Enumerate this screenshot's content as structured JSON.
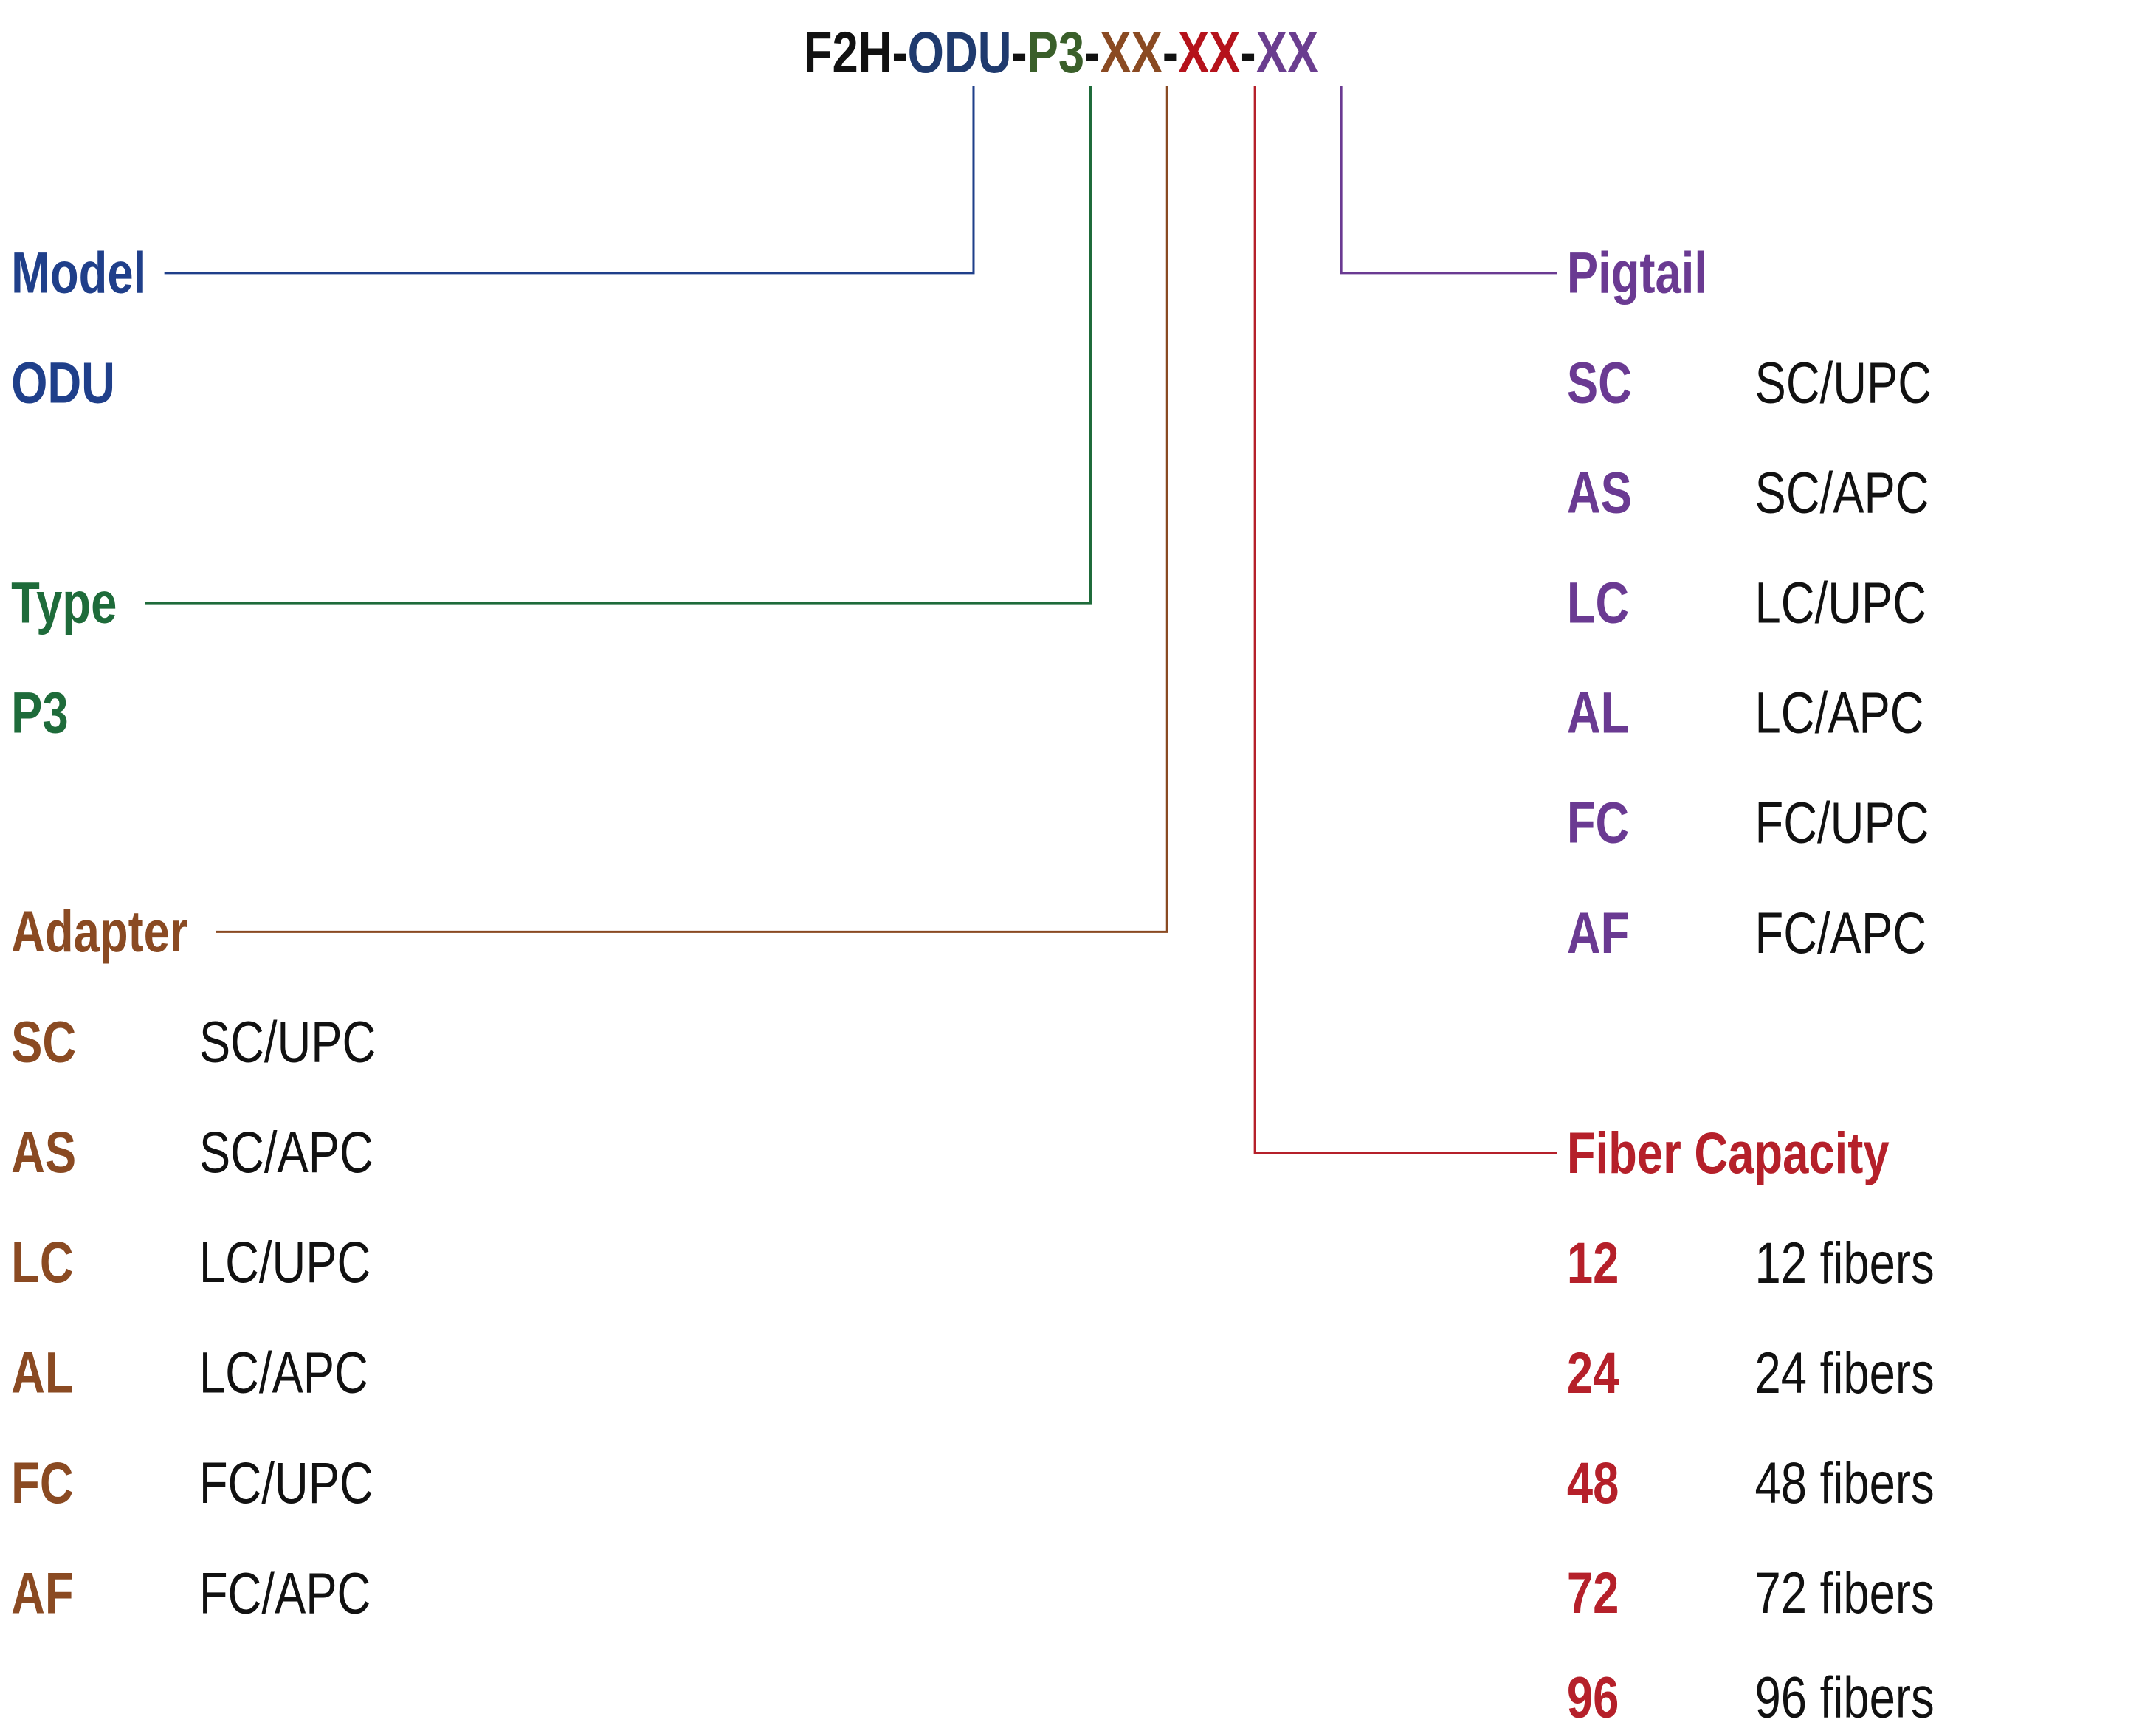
{
  "code": {
    "segments": [
      "F2H-",
      "ODU",
      "-",
      "P3",
      "-",
      "XX",
      "-",
      "XX",
      "-",
      "XX"
    ]
  },
  "sections": [
    {
      "title": "Model",
      "options": [
        {
          "code": "ODU"
        }
      ]
    },
    {
      "title": "Type",
      "options": [
        {
          "code": "P3"
        }
      ]
    },
    {
      "title": "Adapter",
      "options": [
        {
          "code": "SC",
          "description": "SC/UPC"
        },
        {
          "code": "AS",
          "description": "SC/APC"
        },
        {
          "code": "LC",
          "description": "LC/UPC"
        },
        {
          "code": "AL",
          "description": "LC/APC"
        },
        {
          "code": "FC",
          "description": "FC/UPC"
        },
        {
          "code": "AF",
          "description": "FC/APC"
        }
      ]
    },
    {
      "title": "Pigtail",
      "options": [
        {
          "code": "SC",
          "description": "SC/UPC"
        },
        {
          "code": "AS",
          "description": "SC/APC"
        },
        {
          "code": "LC",
          "description": "LC/UPC"
        },
        {
          "code": "AL",
          "description": "LC/APC"
        },
        {
          "code": "FC",
          "description": "FC/UPC"
        },
        {
          "code": "AF",
          "description": "FC/APC"
        }
      ]
    },
    {
      "title": "Fiber Capacity",
      "options": [
        {
          "code": "12",
          "description": "12 fibers"
        },
        {
          "code": "24",
          "description": "24 fibers"
        },
        {
          "code": "48",
          "description": "48 fibers"
        },
        {
          "code": "72",
          "description": "72 fibers"
        },
        {
          "code": "96",
          "description": "96 fibers"
        }
      ]
    }
  ]
}
